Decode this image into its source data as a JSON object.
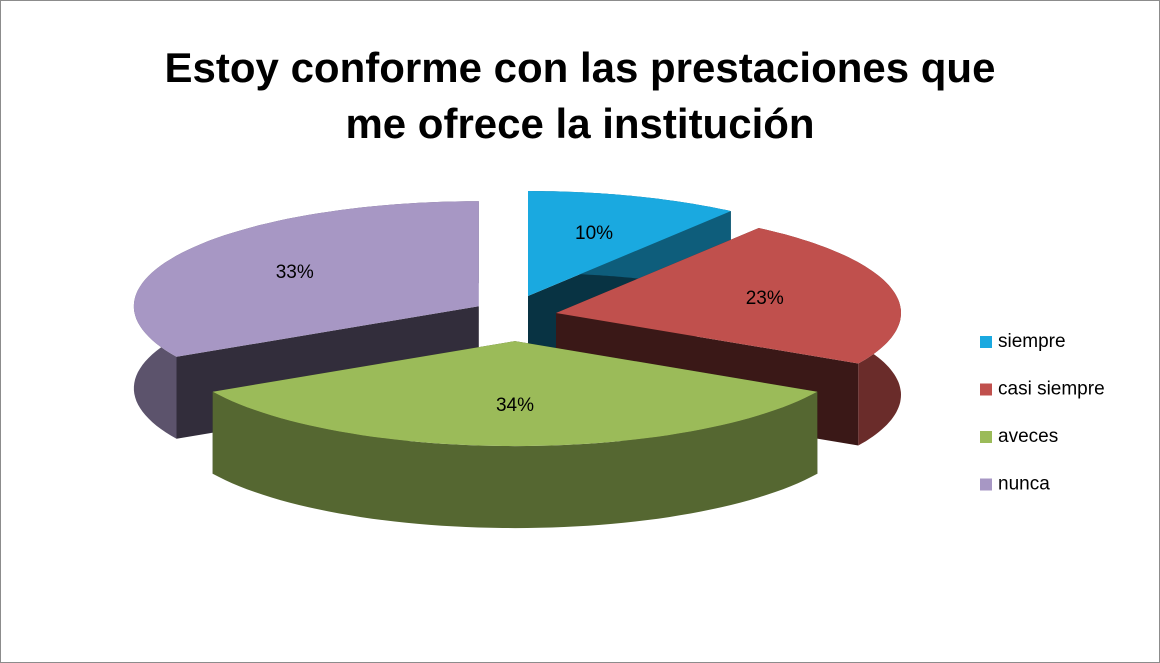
{
  "chart_data": {
    "type": "pie",
    "title": "Estoy conforme con las prestaciones que me ofrece la institución",
    "categories": [
      "siempre",
      "casi siempre",
      "aveces",
      "nunca"
    ],
    "values": [
      10,
      23,
      34,
      33
    ],
    "value_labels": [
      "10%",
      "23%",
      "34%",
      "33%"
    ],
    "colors": [
      "#1aa9e0",
      "#c0504d",
      "#9bbb59",
      "#a797c4"
    ],
    "legend": "right"
  }
}
